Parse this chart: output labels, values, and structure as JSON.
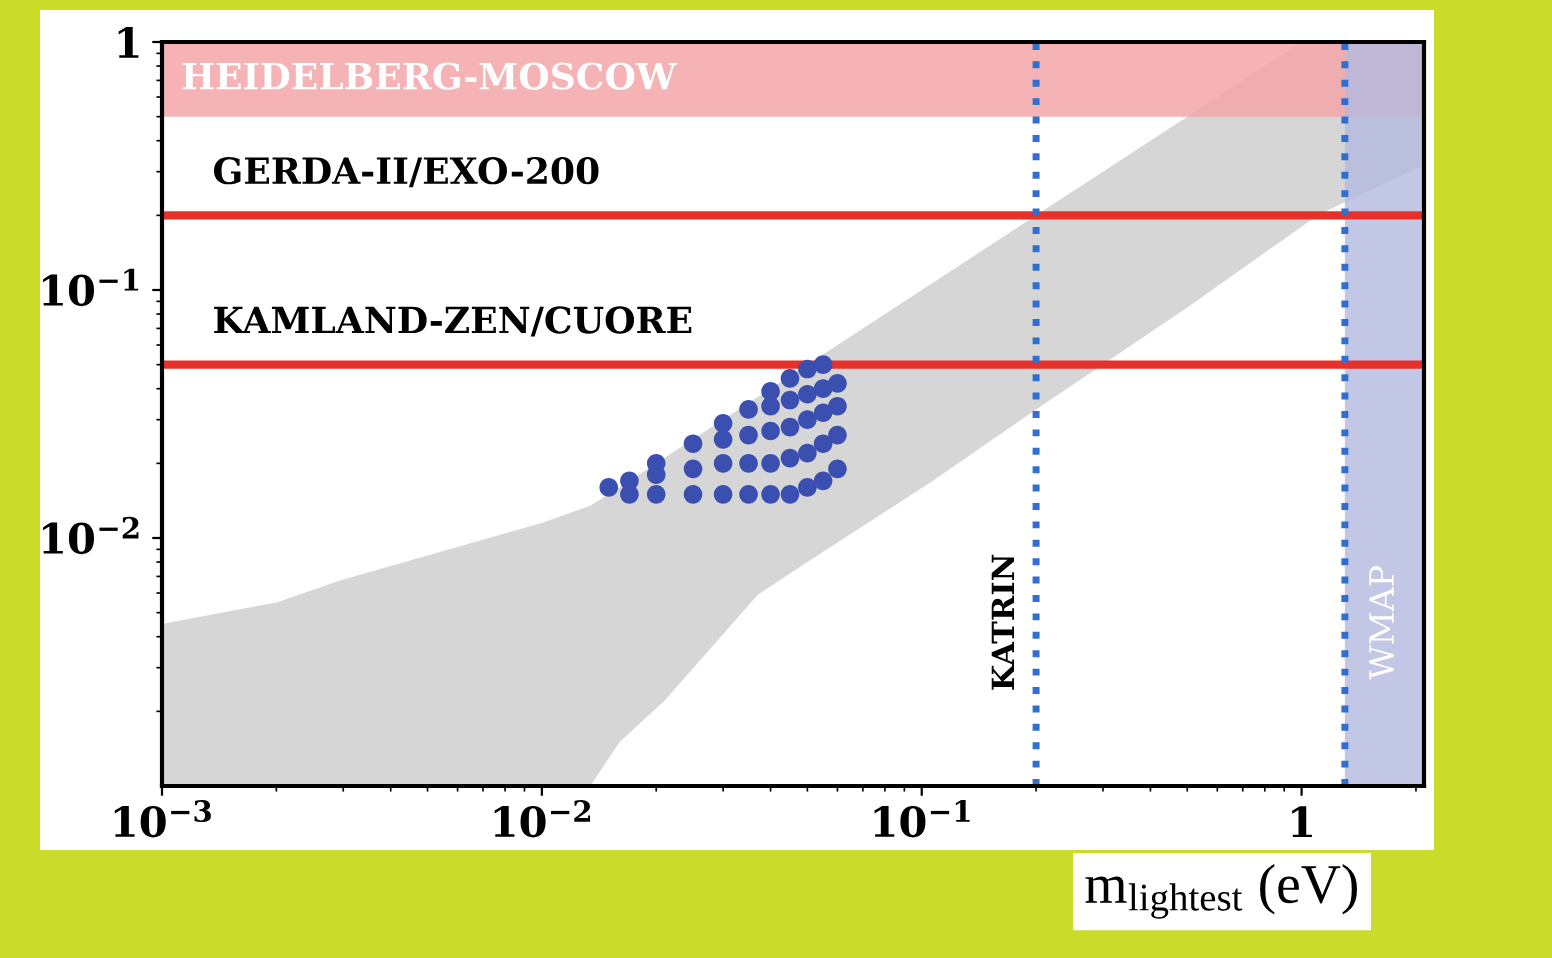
{
  "chart_data": {
    "type": "scatter",
    "xlabel": "m$_{lightest}$ (eV)",
    "log": "xy",
    "grid": false,
    "legend": false,
    "xlim": [
      0.001,
      2.1
    ],
    "ylim": [
      0.001,
      1
    ],
    "xticks": [
      {
        "value": 0.001,
        "label": "10$^{−3}$"
      },
      {
        "value": 0.01,
        "label": "10$^{−2}$"
      },
      {
        "value": 0.1,
        "label": "10$^{−1}$"
      },
      1
    ],
    "yticks": [
      {
        "value": 0.01,
        "label": "10$^{−2}$"
      },
      {
        "value": 0.1,
        "label": "10$^{−1}$"
      },
      1
    ],
    "series": [
      {
        "type": "area",
        "color": "#d6d6d6",
        "x": [
          0.001,
          0.002,
          0.003,
          0.005,
          0.01,
          0.0134,
          0.016,
          0.021,
          0.037,
          0.05,
          0.107,
          0.2,
          0.5,
          1.0,
          1.1,
          2.1
        ],
        "values": [
          null,
          null,
          null,
          null,
          null,
          null,
          null,
          null,
          null,
          null,
          null,
          null,
          null,
          null,
          null,
          null
        ],
        "upper": [
          0.0045,
          0.0055,
          0.0068,
          0.0085,
          0.0115,
          0.0135,
          0.016,
          0.021,
          0.037,
          0.05,
          0.107,
          0.2,
          0.5,
          1,
          1,
          1
        ],
        "lower": [
          0.001,
          0.001,
          0.001,
          0.001,
          0.001,
          0.001,
          0.0015,
          0.0022,
          0.0059,
          0.008,
          0.017,
          0.033,
          0.085,
          0.18,
          0.2,
          0.32
        ]
      },
      {
        "marker": "circle",
        "color": "#3a4fb0",
        "x": [
          0.015,
          0.017,
          0.017,
          0.02,
          0.02,
          0.02,
          0.025,
          0.025,
          0.025,
          0.03,
          0.03,
          0.03,
          0.03,
          0.035,
          0.035,
          0.035,
          0.035,
          0.04,
          0.04,
          0.04,
          0.04,
          0.04,
          0.045,
          0.045,
          0.045,
          0.045,
          0.045,
          0.05,
          0.05,
          0.05,
          0.05,
          0.05,
          0.055,
          0.055,
          0.055,
          0.055,
          0.055,
          0.06,
          0.06,
          0.06,
          0.06
        ],
        "values": [
          0.016,
          0.015,
          0.017,
          0.015,
          0.018,
          0.02,
          0.015,
          0.019,
          0.024,
          0.015,
          0.02,
          0.025,
          0.029,
          0.015,
          0.02,
          0.026,
          0.033,
          0.015,
          0.02,
          0.027,
          0.034,
          0.039,
          0.015,
          0.021,
          0.028,
          0.036,
          0.044,
          0.016,
          0.022,
          0.03,
          0.038,
          0.048,
          0.017,
          0.024,
          0.032,
          0.04,
          0.05,
          0.019,
          0.026,
          0.034,
          0.042
        ]
      }
    ],
    "bands": [
      {
        "axis": "y",
        "from": 0.5,
        "to": 1,
        "label": "HEIDELBERG-MOSCOW",
        "color": "#f4a6a8"
      },
      {
        "axis": "x",
        "from": 1.3,
        "to": 2.1,
        "label": "WMAP",
        "color": "#b4b9e0"
      }
    ],
    "ref_lines": [
      {
        "axis": "y",
        "value": 0.2,
        "label": "GERDA-II/EXO-200",
        "color": "#e8302a",
        "line_style": "solid"
      },
      {
        "axis": "y",
        "value": 0.05,
        "label": "KAMLAND-ZEN/CUORE",
        "color": "#e8302a",
        "line_style": "solid"
      },
      {
        "axis": "x",
        "value": 0.2,
        "label": "KATRIN",
        "color": "#2f6fd0",
        "line_style": "dotted"
      },
      {
        "axis": "x",
        "value": 1.3,
        "color": "#2f6fd0",
        "line_style": "dotted"
      }
    ]
  }
}
